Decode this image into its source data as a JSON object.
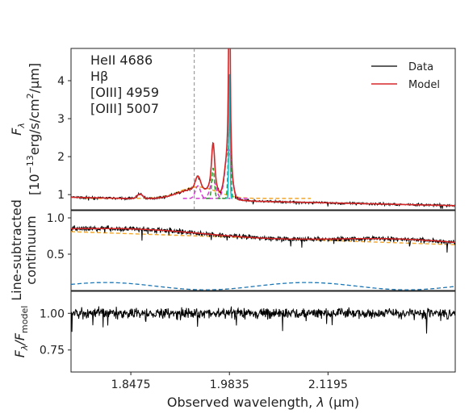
{
  "chart_data": [
    {
      "type": "line",
      "panel": "top",
      "ylabel_line1": "F",
      "ylabel_sub": "λ",
      "ylabel_line2_prefix": "[10",
      "ylabel_line2_exp": "−13",
      "ylabel_line2_units": "erg/s/cm",
      "ylabel_line2_units_exp": "2",
      "ylabel_line2_suffix": "/µm]",
      "y_ticks": [
        1,
        2,
        3,
        4
      ],
      "ylim": [
        0.6,
        4.85
      ],
      "line_labels": [
        "HeII 4686",
        "Hβ",
        "[OIII] 4959",
        "[OIII] 5007"
      ],
      "legend": {
        "placement": "top-right",
        "entries": [
          "Data",
          "Model"
        ]
      },
      "colors": {
        "data": "#000000",
        "model": "#d62728",
        "broad_orange": "#f2a72a",
        "magenta": "#d43cd4",
        "green": "#2ca02c",
        "teal": "#17becf",
        "marker_line": "#888888"
      },
      "marker_x": 1.935,
      "continuum_level": 0.93,
      "components": [
        {
          "name": "orange",
          "center": 1.94,
          "width": 0.026,
          "amp": 0.3
        },
        {
          "name": "magenta",
          "center": 1.94,
          "width": 0.0035,
          "amp": 0.33
        },
        {
          "name": "magenta",
          "center": 1.961,
          "width": 0.004,
          "amp": 0.5
        },
        {
          "name": "magenta",
          "center": 1.982,
          "width": 0.0045,
          "amp": 1.3
        },
        {
          "name": "magenta",
          "center": 1.86,
          "width": 0.004,
          "amp": 0.12
        },
        {
          "name": "green",
          "center": 1.961,
          "width": 0.0018,
          "amp": 0.8
        },
        {
          "name": "green",
          "center": 1.9835,
          "width": 0.0016,
          "amp": 2.0
        },
        {
          "name": "teal",
          "center": 1.9835,
          "width": 0.0008,
          "amp": 3.4
        }
      ]
    },
    {
      "type": "line",
      "panel": "middle",
      "ylabel_line1": "Line-subtracted",
      "ylabel_line2": "continuum",
      "y_ticks": [
        0.5,
        1.0
      ],
      "y_tick_labels": [
        "0.5",
        "1.0"
      ],
      "ylim": [
        0.0,
        1.1
      ],
      "orange_dashed": {
        "start": 0.81,
        "end": 0.63
      },
      "model_red": {
        "start": 0.85,
        "end": 0.65
      },
      "blue_dashed": {
        "base": 0.06,
        "amp": 0.05
      }
    },
    {
      "type": "line",
      "panel": "bottom",
      "ylabel_main": "F",
      "ylabel_sub1": "λ",
      "ylabel_mid": "/F",
      "ylabel_sub2": "model",
      "y_ticks": [
        0.75,
        1.0
      ],
      "y_tick_labels": [
        "0.75",
        "1.00"
      ],
      "ylim": [
        0.6,
        1.15
      ],
      "reference_line": 1.0
    }
  ],
  "x_axis": {
    "xlim": [
      1.765,
      2.295
    ],
    "ticks": [
      1.8475,
      1.9835,
      2.1195
    ],
    "tick_labels": [
      "1.8475",
      "1.9835",
      "2.1195"
    ],
    "xlabel_prefix": "Observed wavelength, ",
    "xlabel_symbol": "λ",
    "xlabel_suffix": " (µm)"
  }
}
